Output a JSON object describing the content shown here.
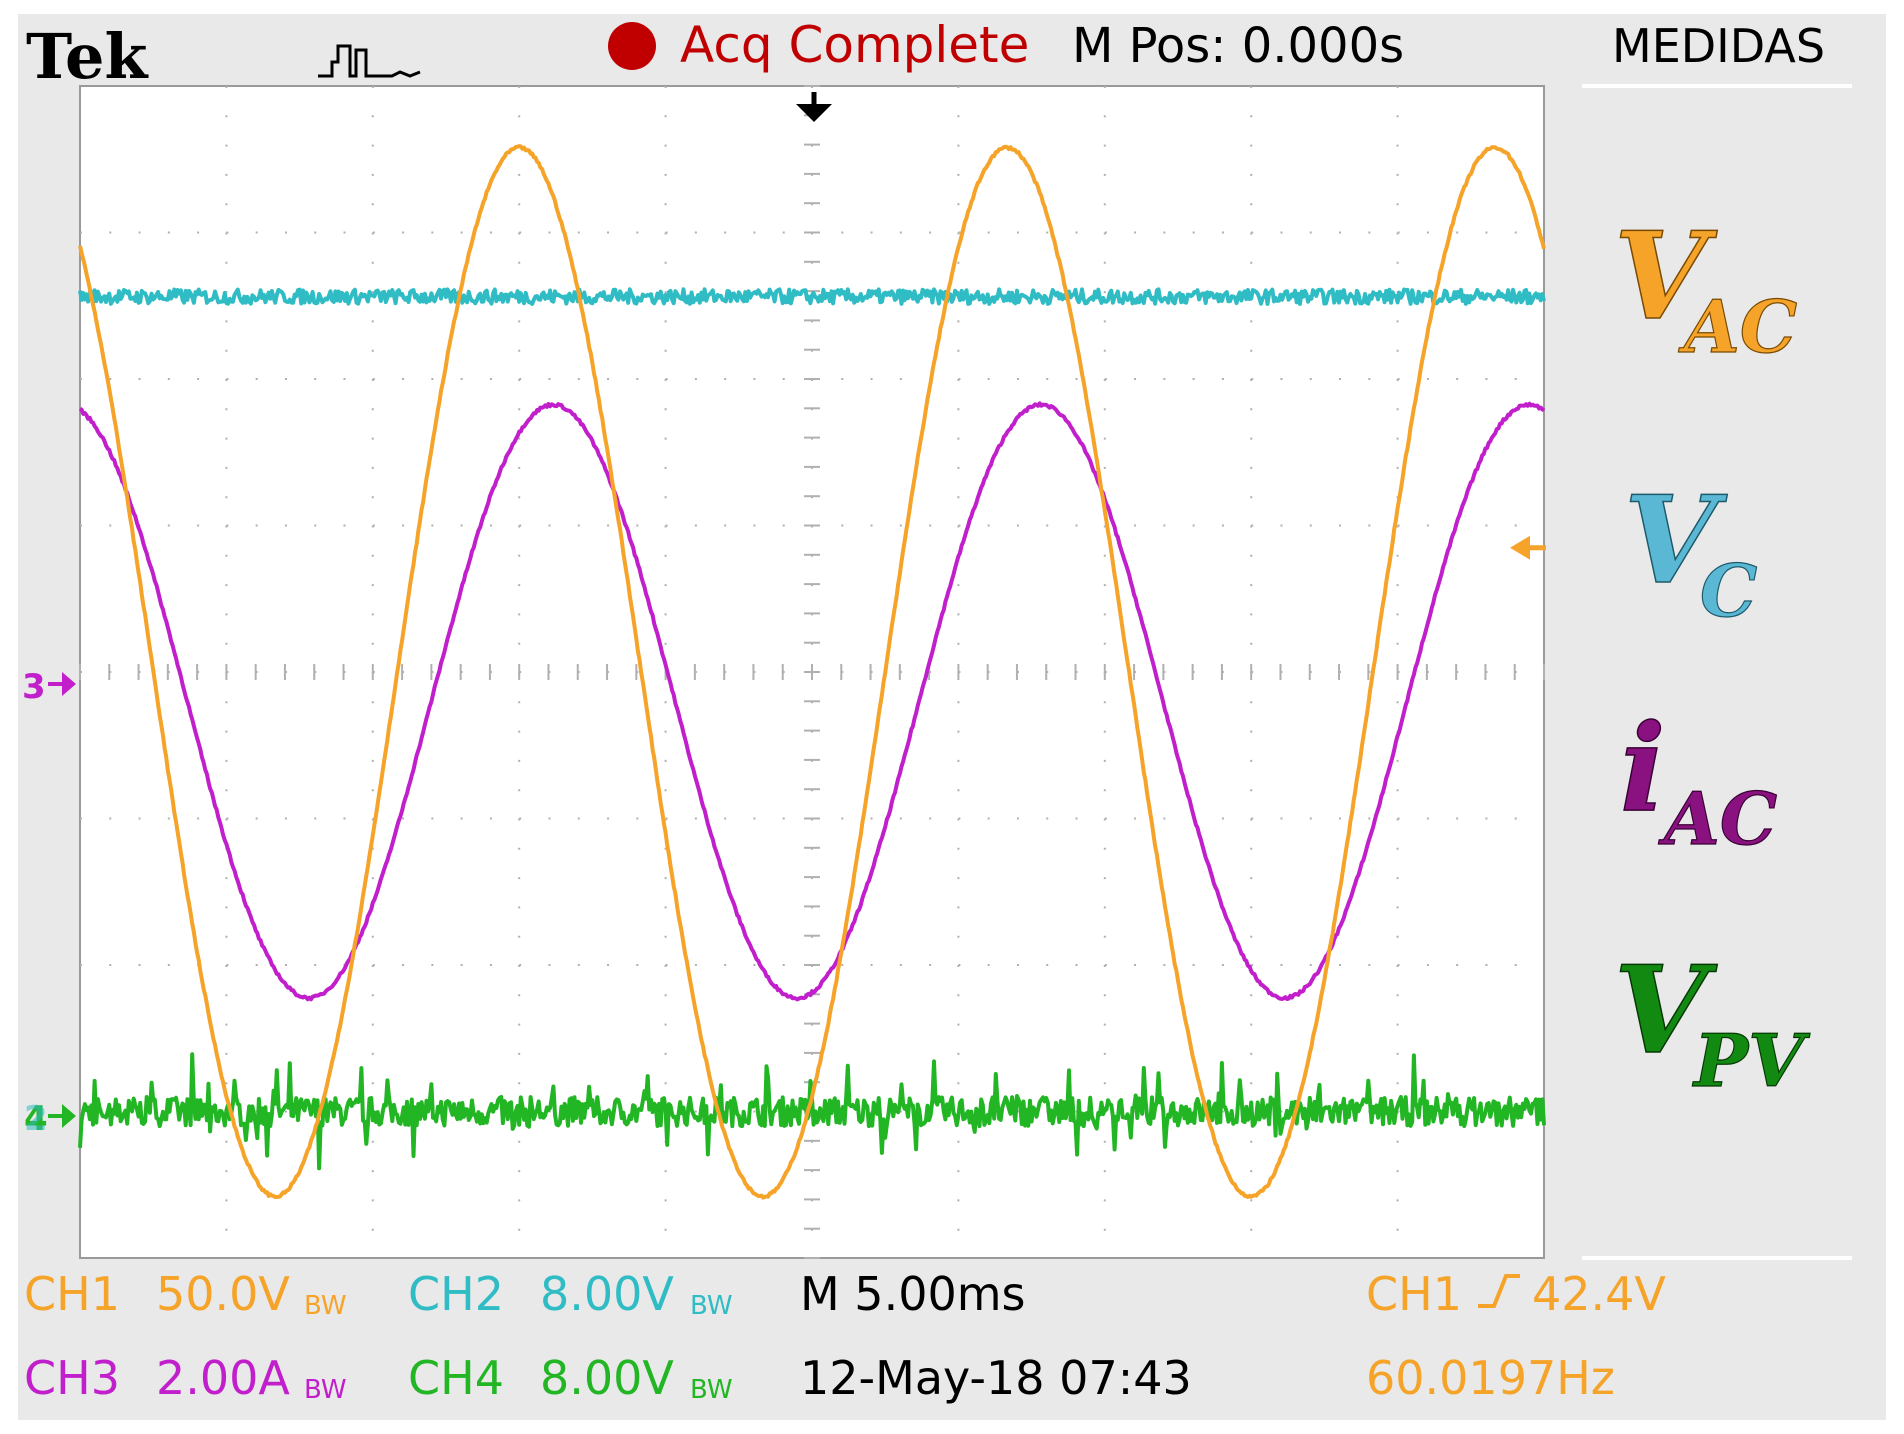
{
  "header": {
    "brand": "Tek",
    "acq_status": "Acq Complete",
    "m_pos": "M Pos: 0.000s",
    "side_menu_title": "MEDIDAS"
  },
  "colors": {
    "background": "#e9e9e9",
    "screen": "#ffffff",
    "grid": "#b0b0b0",
    "ch1": "#f5a329",
    "ch2": "#2fbcc4",
    "ch3": "#c21fcc",
    "ch4": "#22b524",
    "acq_dot": "#c00000",
    "label_vac": "#f5a329",
    "label_vc": "#5bb8d4",
    "label_iac": "#8a1280",
    "label_vpv": "#128a12"
  },
  "markers": {
    "ch3_ground": "3",
    "ch2_ground": "2",
    "ch4_ground": "4"
  },
  "status": {
    "ch1_label": "CH1",
    "ch1_scale": "50.0V",
    "ch2_label": "CH2",
    "ch2_scale": "8.00V",
    "ch3_label": "CH3",
    "ch3_scale": "2.00A",
    "ch4_label": "CH4",
    "ch4_scale": "8.00V",
    "bw_mark": "BW",
    "timebase": "M 5.00ms",
    "trigger_source": "CH1",
    "trigger_level": "42.4V",
    "date_time": "12-May-18 07:43",
    "frequency": "60.0197Hz"
  },
  "signal_labels": {
    "vac_main": "V",
    "vac_sub": "AC",
    "vc_main": "V",
    "vc_sub": "C",
    "iac_main": "i",
    "iac_sub": "AC",
    "vpv_main": "V",
    "vpv_sub": "PV"
  },
  "chart_data": {
    "type": "line",
    "x_unit": "ms",
    "x_range": [
      -25,
      25
    ],
    "y_divisions": [
      -4,
      4
    ],
    "grid": true,
    "series": [
      {
        "channel": "CH1",
        "signal": "V_AC",
        "kind": "sine",
        "scale_per_div": 50.0,
        "unit": "V",
        "amplitude": 179,
        "offset": 0,
        "frequency_hz": 60.0197,
        "phase_deg": -54
      },
      {
        "channel": "CH2",
        "signal": "V_C",
        "kind": "dc",
        "scale_per_div": 8.0,
        "unit": "V",
        "level": 44.5,
        "ground_div": -3,
        "noise_div": 0.05
      },
      {
        "channel": "CH3",
        "signal": "i_AC",
        "kind": "sine",
        "scale_per_div": 2.0,
        "unit": "A",
        "amplitude": 4.05,
        "offset": -0.4,
        "frequency_hz": 60.0197,
        "phase_deg": -79
      },
      {
        "channel": "CH4",
        "signal": "V_PV",
        "kind": "dc",
        "scale_per_div": 8.0,
        "unit": "V",
        "level": 0,
        "ground_div": -3,
        "noise_div": 0.1
      }
    ]
  }
}
